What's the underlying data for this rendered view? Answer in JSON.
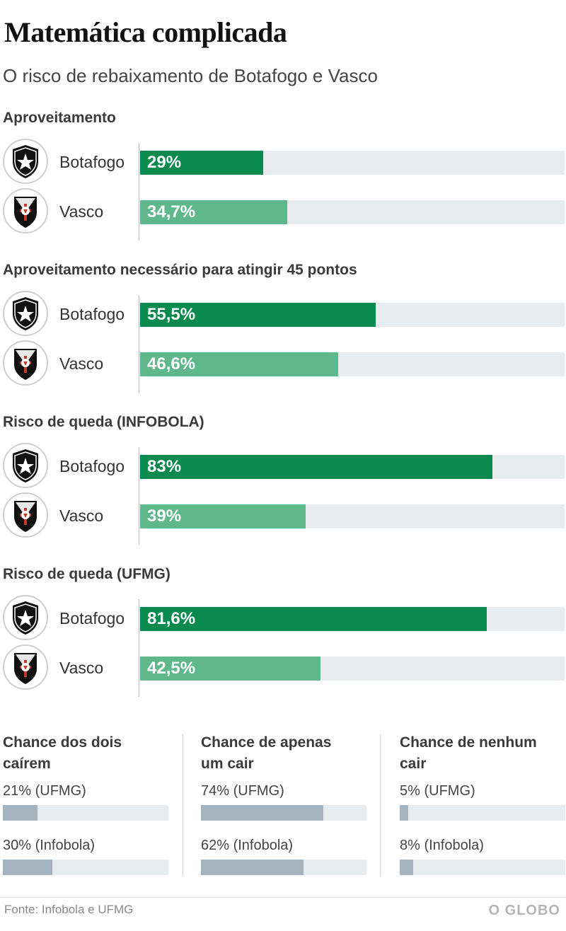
{
  "title": "Matemática complicada",
  "subtitle": "O risco de rebaixamento de Botafogo e Vasco",
  "colors": {
    "botafogo": "#0a8a4f",
    "vasco": "#5fb88c",
    "track": "#e8ecef",
    "mini": "#a3b3bf"
  },
  "icons": {
    "botafogo": "botafogo-crest-icon",
    "vasco": "vasco-crest-icon"
  },
  "chart_data": [
    {
      "type": "bar",
      "title": "Aproveitamento",
      "categories": [
        "Botafogo",
        "Vasco"
      ],
      "values": [
        29,
        34.7
      ],
      "labels": [
        "29%",
        "34,7%"
      ],
      "ylim": [
        0,
        100
      ]
    },
    {
      "type": "bar",
      "title": "Aproveitamento necessário para atingir 45 pontos",
      "categories": [
        "Botafogo",
        "Vasco"
      ],
      "values": [
        55.5,
        46.6
      ],
      "labels": [
        "55,5%",
        "46,6%"
      ],
      "ylim": [
        0,
        100
      ]
    },
    {
      "type": "bar",
      "title": "Risco de queda (INFOBOLA)",
      "categories": [
        "Botafogo",
        "Vasco"
      ],
      "values": [
        83,
        39
      ],
      "labels": [
        "83%",
        "39%"
      ],
      "ylim": [
        0,
        100
      ]
    },
    {
      "type": "bar",
      "title": "Risco de queda (UFMG)",
      "categories": [
        "Botafogo",
        "Vasco"
      ],
      "values": [
        81.6,
        42.5
      ],
      "labels": [
        "81,6%",
        "42,5%"
      ],
      "ylim": [
        0,
        100
      ]
    },
    {
      "type": "bar",
      "title": "Chance dos dois caírem",
      "categories": [
        "21% (UFMG)",
        "30% (Infobola)"
      ],
      "values": [
        21,
        30
      ],
      "ylim": [
        0,
        100
      ]
    },
    {
      "type": "bar",
      "title": "Chance de apenas um cair",
      "categories": [
        "74% (UFMG)",
        "62% (Infobola)"
      ],
      "values": [
        74,
        62
      ],
      "ylim": [
        0,
        100
      ]
    },
    {
      "type": "bar",
      "title": "Chance de nenhum cair",
      "categories": [
        "5% (UFMG)",
        "8% (Infobola)"
      ],
      "values": [
        5,
        8
      ],
      "ylim": [
        0,
        100
      ]
    }
  ],
  "source": "Fonte: Infobola e UFMG",
  "brand": "O GLOBO"
}
